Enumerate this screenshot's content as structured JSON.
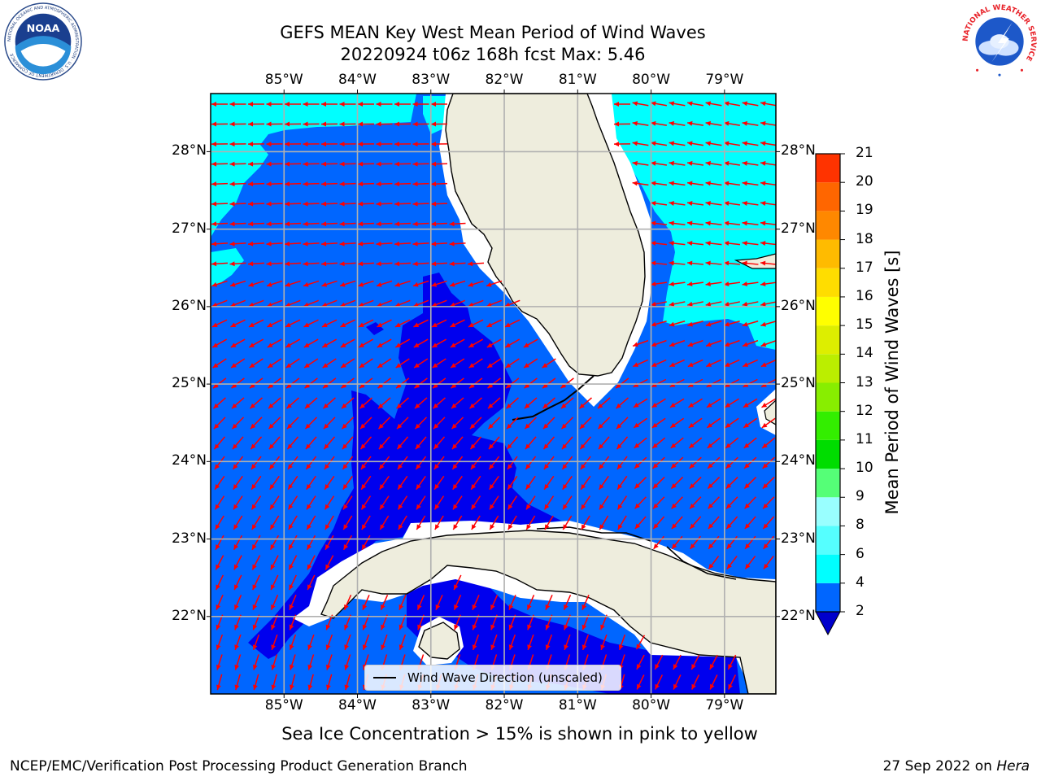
{
  "header": {
    "title_line1": "GEFS MEAN Key West Mean Period of Wind Waves",
    "title_line2": "20220924 t06z 168h fcst   Max: 5.46"
  },
  "logos": {
    "noaa_text": "NOAA",
    "noaa_ring": "NATIONAL OCEANIC AND ATMOSPHERIC ADMINISTRATION · U.S. DEPARTMENT OF COMMERCE",
    "nws_ring": "NATIONAL WEATHER SERVICE"
  },
  "map": {
    "lon_labels": [
      "85°W",
      "84°W",
      "83°W",
      "82°W",
      "81°W",
      "80°W",
      "79°W"
    ],
    "lat_labels": [
      "22°N",
      "23°N",
      "24°N",
      "25°N",
      "26°N",
      "27°N",
      "28°N"
    ],
    "extent": {
      "lon_min": -86.0,
      "lon_max": -78.3,
      "lat_min": 21.0,
      "lat_max": 28.75
    },
    "colors": {
      "period_2_4": "#0066ff",
      "period_under_2": "#0000ee",
      "period_4_6": "#00ffff",
      "land": "#eeeddd",
      "arrow": "#ff0000",
      "grid": "#b0b0b0"
    }
  },
  "legend": {
    "label": "Wind Wave Direction (unscaled)"
  },
  "colorbar": {
    "title": "Mean Period of Wind Waves [s]",
    "ticks": [
      "2",
      "4",
      "6",
      "8",
      "9",
      "10",
      "11",
      "12",
      "13",
      "14",
      "15",
      "16",
      "17",
      "18",
      "19",
      "20",
      "21"
    ],
    "colors": [
      "#0066ff",
      "#00ffff",
      "#55ffff",
      "#99ffff",
      "#55ff77",
      "#00dd00",
      "#33ee00",
      "#88ee00",
      "#bbee00",
      "#ddee00",
      "#ffff00",
      "#ffdd00",
      "#ffbb00",
      "#ff8800",
      "#ff6600",
      "#ff3300",
      "#ff0000"
    ],
    "extend_color": "#0000cc"
  },
  "notes": {
    "sea_ice": "Sea Ice Concentration > 15% is shown in pink to yellow",
    "producer": "NCEP/EMC/Verification Post Processing Product Generation Branch",
    "date": "27 Sep 2022 on ",
    "host": "Hera"
  }
}
